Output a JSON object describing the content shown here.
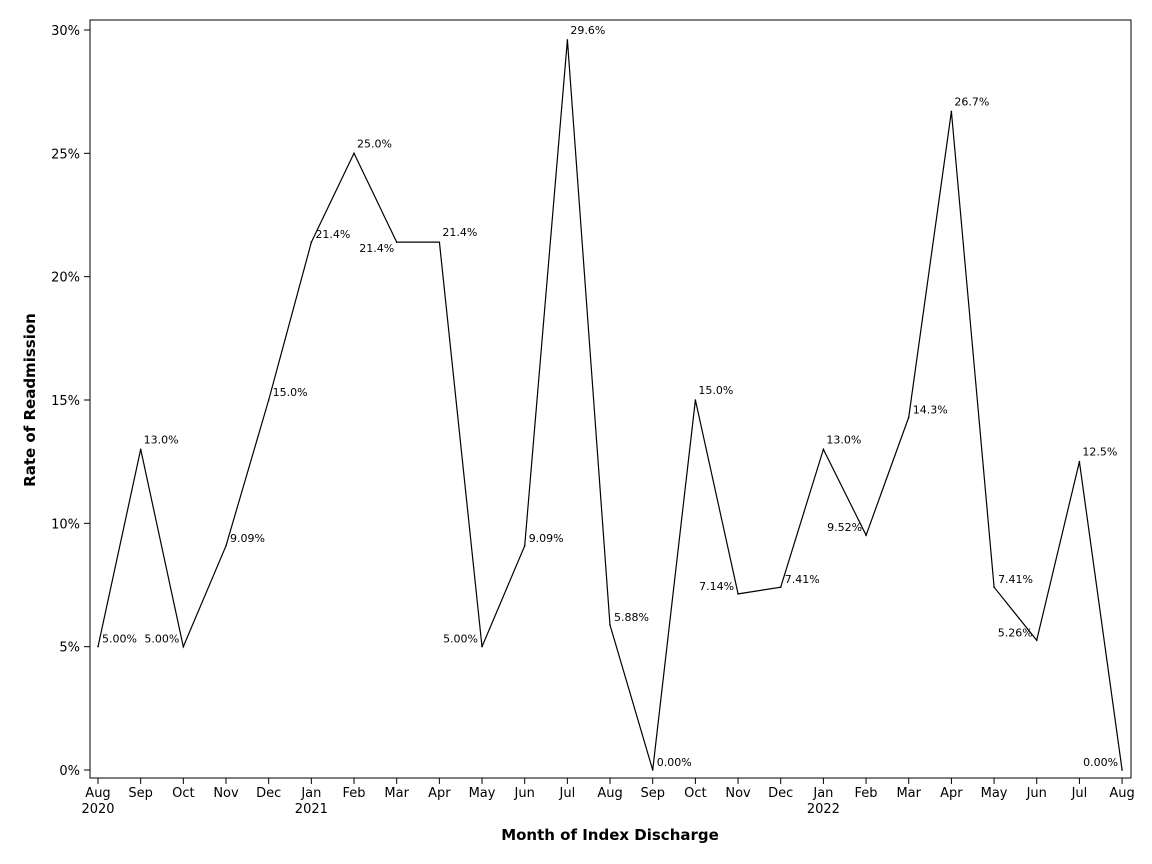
{
  "chart_data": {
    "type": "line",
    "title": "",
    "xlabel": "Month of Index Discharge",
    "ylabel": "Rate of Readmission",
    "ylim": [
      0,
      30
    ],
    "y_ticks": [
      "0%",
      "5%",
      "10%",
      "15%",
      "20%",
      "25%",
      "30%"
    ],
    "y_tick_values": [
      0,
      5,
      10,
      15,
      20,
      25,
      30
    ],
    "grid": false,
    "line_color": "#000000",
    "x_tick_labels": [
      "Aug",
      "Sep",
      "Oct",
      "Nov",
      "Dec",
      "Jan",
      "Feb",
      "Mar",
      "Apr",
      "May",
      "Jun",
      "Jul",
      "Aug",
      "Sep",
      "Oct",
      "Nov",
      "Dec",
      "Jan",
      "Feb",
      "Mar",
      "Apr",
      "May",
      "Jun",
      "Jul",
      "Aug"
    ],
    "year_labels": [
      {
        "index": 0,
        "text": "2020"
      },
      {
        "index": 5,
        "text": "2021"
      },
      {
        "index": 17,
        "text": "2022"
      }
    ],
    "x": [
      "2020-08",
      "2020-09",
      "2020-10",
      "2020-11",
      "2020-12",
      "2021-01",
      "2021-02",
      "2021-03",
      "2021-04",
      "2021-05",
      "2021-06",
      "2021-07",
      "2021-08",
      "2021-09",
      "2021-10",
      "2021-11",
      "2021-12",
      "2022-01",
      "2022-02",
      "2022-03",
      "2022-04",
      "2022-05",
      "2022-06",
      "2022-07",
      "2022-08"
    ],
    "values": [
      5.0,
      13.0,
      5.0,
      9.09,
      15.0,
      21.4,
      25.0,
      21.4,
      21.4,
      5.0,
      9.09,
      29.6,
      5.88,
      0.0,
      15.0,
      7.14,
      7.41,
      13.0,
      9.52,
      14.3,
      26.7,
      7.41,
      5.26,
      12.5,
      0.0
    ],
    "data_labels": [
      "5.00%",
      "13.0%",
      "5.00%",
      "9.09%",
      "15.0%",
      "21.4%",
      "25.0%",
      "21.4%",
      "21.4%",
      "5.00%",
      "9.09%",
      "29.6%",
      "5.88%",
      "0.00%",
      "15.0%",
      "7.14%",
      "7.41%",
      "13.0%",
      "9.52%",
      "14.3%",
      "26.7%",
      "7.41%",
      "5.26%",
      "12.5%",
      "0.00%"
    ]
  }
}
